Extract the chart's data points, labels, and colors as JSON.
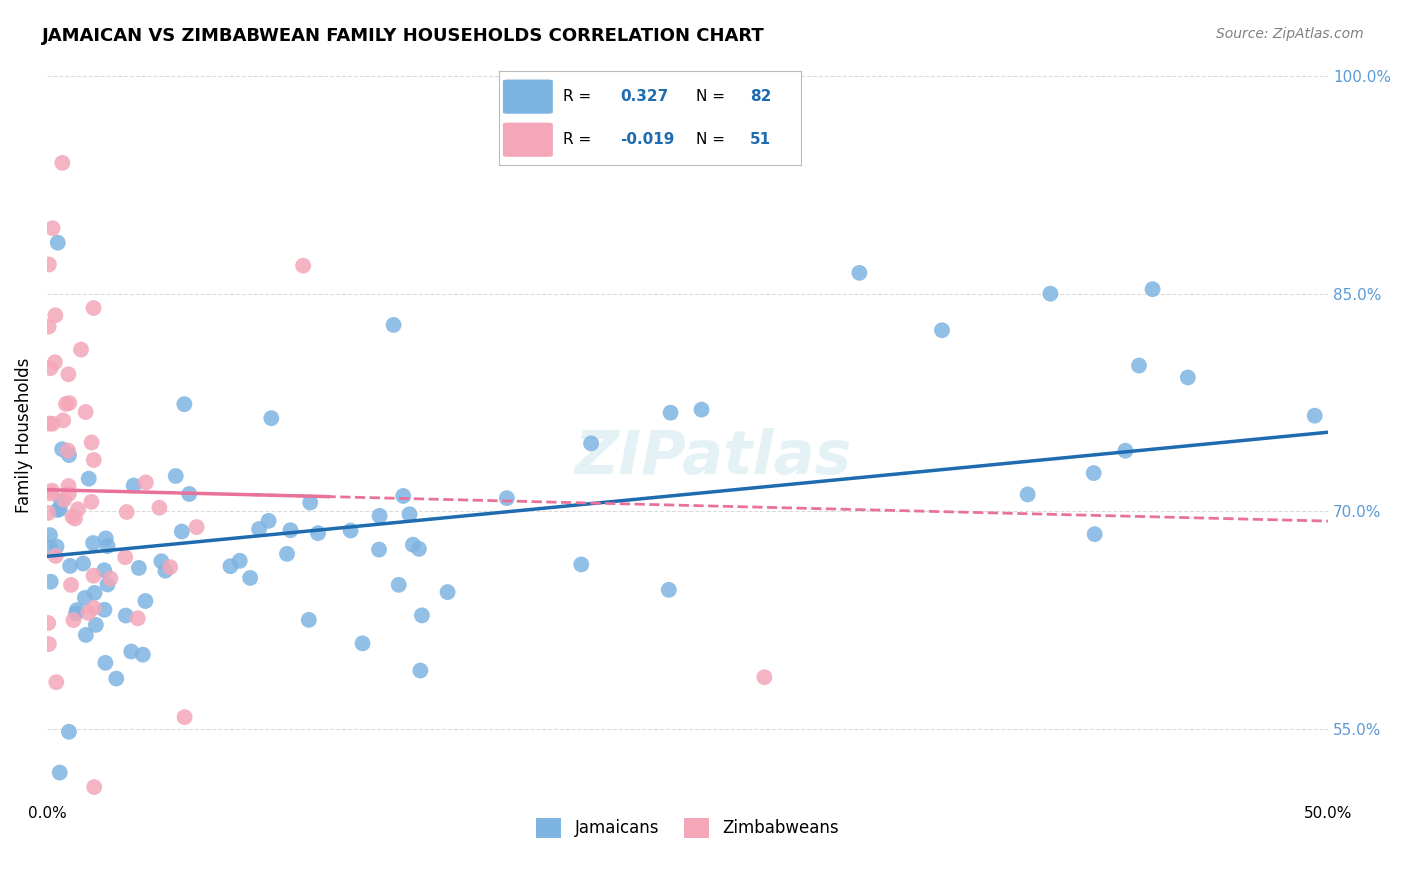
{
  "title": "JAMAICAN VS ZIMBABWEAN FAMILY HOUSEHOLDS CORRELATION CHART",
  "source": "Source: ZipAtlas.com",
  "ylabel": "Family Households",
  "jamaican_R": 0.327,
  "jamaican_N": 82,
  "zimbabwean_R": -0.019,
  "zimbabwean_N": 51,
  "jamaican_color": "#7EB4E2",
  "zimbabwean_color": "#F4A7B9",
  "trend_jamaican_color": "#1F6BB0",
  "trend_zimbabwean_color": "#E8729A",
  "background_color": "#FFFFFF",
  "grid_color": "#CCCCCC",
  "watermark": "ZIPatlas",
  "xmin": 0.0,
  "xmax": 0.5,
  "ymin": 0.5,
  "ymax": 1.005,
  "ytick_vals": [
    0.55,
    0.7,
    0.85,
    1.0
  ],
  "ytick_labels": [
    "55.0%",
    "70.0%",
    "85.0%",
    "100.0%"
  ],
  "xtick_vals": [
    0.0,
    0.1,
    0.2,
    0.3,
    0.4,
    0.5
  ],
  "xtick_labels": [
    "0.0%",
    "",
    "",
    "",
    "",
    "50.0%"
  ]
}
